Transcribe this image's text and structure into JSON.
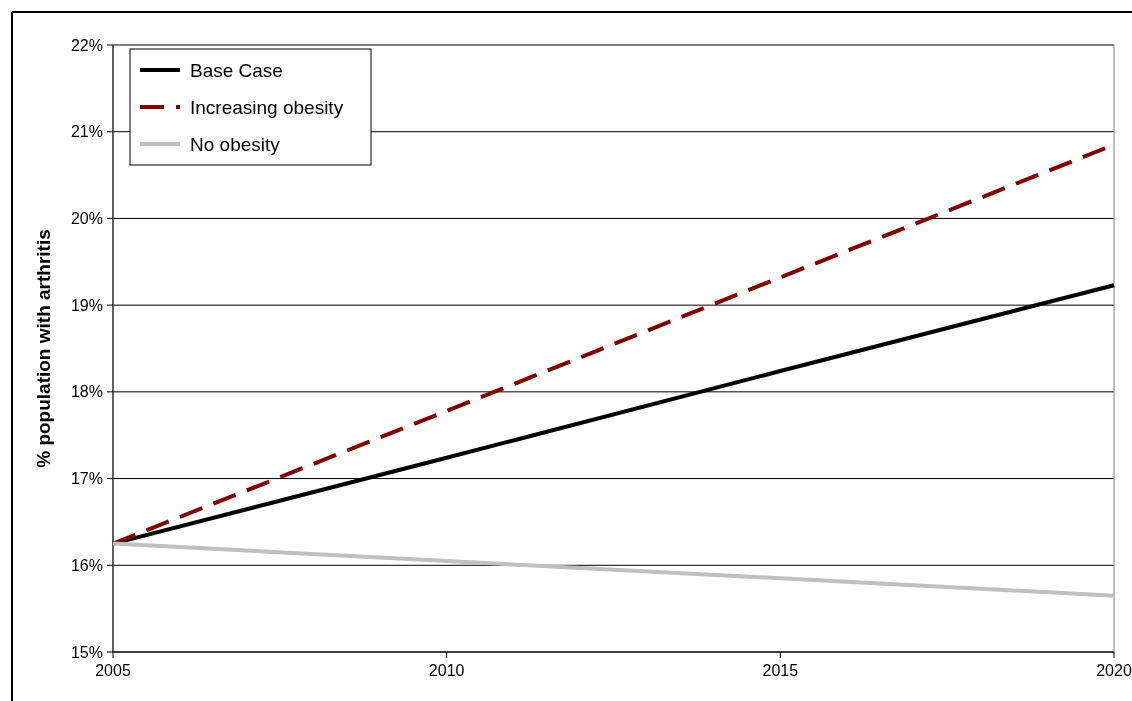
{
  "chart_data": {
    "type": "line",
    "ylabel": "% population with arthritis",
    "x": [
      2005,
      2010,
      2015,
      2020
    ],
    "series": [
      {
        "name": "Base Case",
        "color": "#000000",
        "line_style": "solid",
        "values": [
          16.25,
          17.24,
          18.24,
          19.23
        ]
      },
      {
        "name": "Increasing obesity",
        "color": "#800000",
        "line_style": "dashed",
        "values": [
          16.25,
          17.78,
          19.32,
          20.85
        ]
      },
      {
        "name": "No obesity",
        "color": "#c0c0c0",
        "line_style": "solid",
        "values": [
          16.25,
          16.05,
          15.85,
          15.65
        ]
      }
    ],
    "xlim": [
      2005,
      2020
    ],
    "xticks": [
      2005,
      2010,
      2015,
      2020
    ],
    "ylim": [
      15,
      22
    ],
    "yticks": [
      {
        "value": 15,
        "label": "15%"
      },
      {
        "value": 16,
        "label": "16%"
      },
      {
        "value": 17,
        "label": "17%"
      },
      {
        "value": 18,
        "label": "18%"
      },
      {
        "value": 19,
        "label": "19%"
      },
      {
        "value": 20,
        "label": "20%"
      },
      {
        "value": 21,
        "label": "21%"
      },
      {
        "value": 22,
        "label": "22%"
      }
    ],
    "grid": "y",
    "legend": "top left",
    "marker": "none"
  }
}
